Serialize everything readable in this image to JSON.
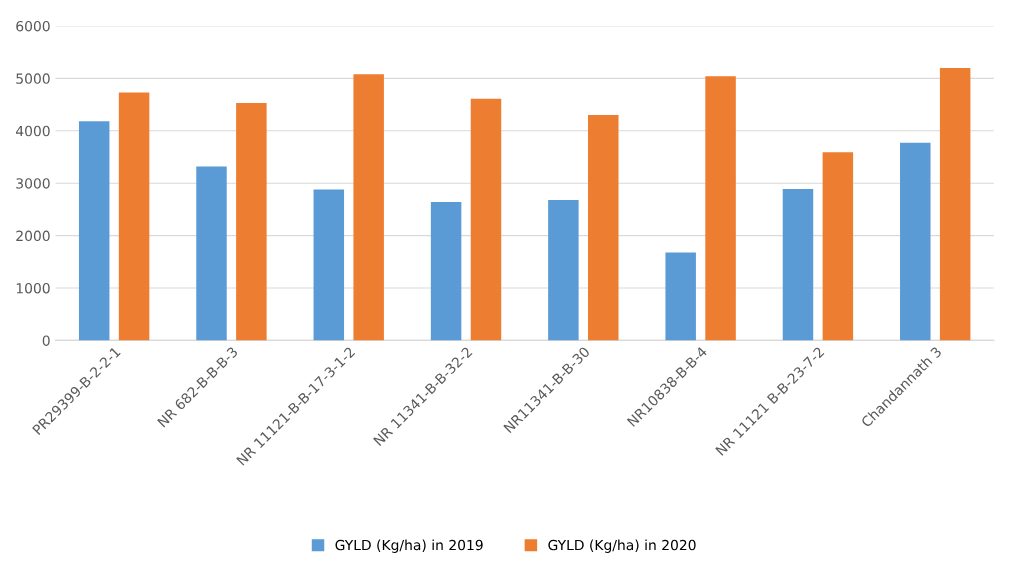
{
  "chart_data": {
    "type": "bar",
    "categories": [
      "PR29399-B-2-2-1",
      "NR 682-B-B-B-3",
      "NR 11121-B-B-17-3-1-2",
      "NR 11341-B-B-32-2",
      "NR11341-B-B-30",
      "NR10838-B-B-4",
      "NR 11121 B-B-23-7-2",
      "Chandannath 3"
    ],
    "series": [
      {
        "name": "GYLD (Kg/ha) in 2019",
        "color": "#5b9bd5",
        "values": [
          4180,
          3320,
          2880,
          2640,
          2680,
          1680,
          2890,
          3770
        ]
      },
      {
        "name": "GYLD (Kg/ha) in 2020",
        "color": "#ed7d31",
        "values": [
          4730,
          4530,
          5080,
          4610,
          4300,
          5040,
          3590,
          5200
        ]
      }
    ],
    "ylim": [
      0,
      6000
    ],
    "yticks": [
      0,
      1000,
      2000,
      3000,
      4000,
      5000,
      6000
    ],
    "grid": "y",
    "legend": "bottom"
  }
}
